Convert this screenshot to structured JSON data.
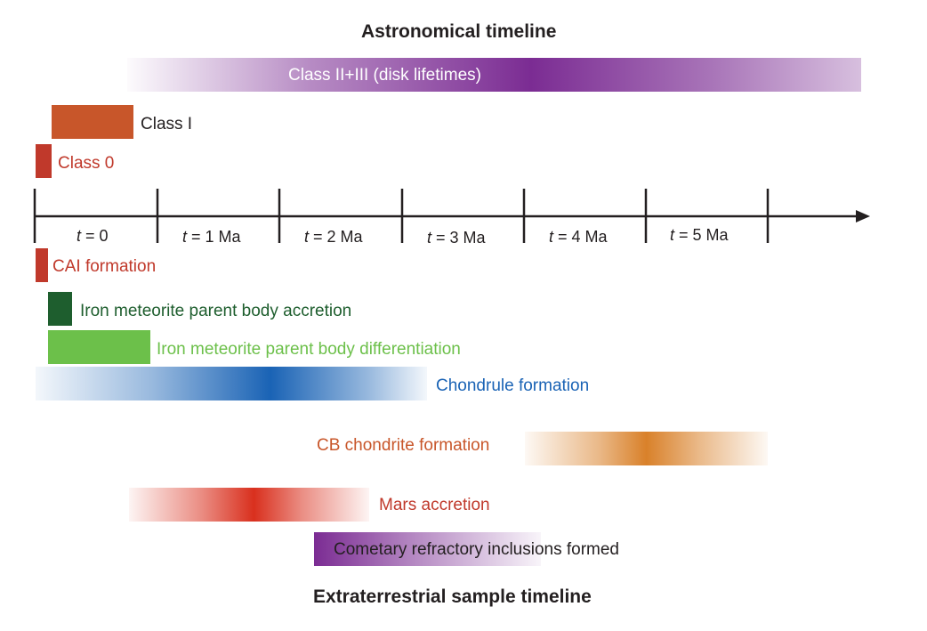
{
  "titles": {
    "top": "Astronomical timeline",
    "bottom": "Extraterrestrial sample timeline"
  },
  "axis": {
    "ticks": [
      {
        "var": "t",
        "rest": " = 0"
      },
      {
        "var": "t",
        "rest": " = 1 Ma"
      },
      {
        "var": "t",
        "rest": " = 2 Ma"
      },
      {
        "var": "t",
        "rest": " = 3 Ma"
      },
      {
        "var": "t",
        "rest": " = 4 Ma"
      },
      {
        "var": "t",
        "rest": " = 5 Ma"
      }
    ]
  },
  "astronomical": [
    {
      "label": "Class II+III (disk lifetimes)",
      "color": "#7b2c93"
    },
    {
      "label": "Class I",
      "color": "#c8562a"
    },
    {
      "label": "Class 0",
      "color": "#c0392b"
    }
  ],
  "samples": [
    {
      "label": "CAI formation",
      "color": "#c0392b"
    },
    {
      "label": "Iron meteorite parent body accretion",
      "color": "#1e5e2e"
    },
    {
      "label": "Iron meteorite parent body differentiation",
      "color": "#6cc04a"
    },
    {
      "label": "Chondrule formation",
      "color": "#1a63b5"
    },
    {
      "label": "CB chondrite formation",
      "color": "#d9812a"
    },
    {
      "label": "Mars accretion",
      "color": "#d9301e"
    },
    {
      "label": "Cometary refractory inclusions formed",
      "color": "#7b2c93"
    }
  ]
}
